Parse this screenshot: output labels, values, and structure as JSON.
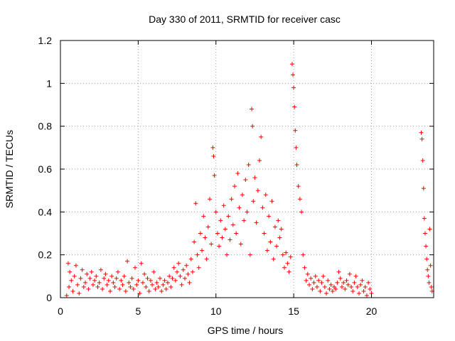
{
  "chart_data": {
    "type": "scatter",
    "title": "Day 330 of 2011, SRMTID for receiver casc",
    "xlabel": "GPS time / hours",
    "ylabel": "SRMTID / TECUs",
    "xlim": [
      0,
      24
    ],
    "ylim": [
      0,
      1.2
    ],
    "xticks": [
      0,
      5,
      10,
      15,
      20
    ],
    "xtick_labels": [
      "0",
      "5",
      "10",
      "15",
      "20"
    ],
    "yticks": [
      0,
      0.2,
      0.4,
      0.6,
      0.8,
      1.0,
      1.2
    ],
    "ytick_labels": [
      "0",
      "0.2",
      "0.4",
      "0.6",
      "0.8",
      "1",
      "1.2"
    ],
    "grid": true,
    "marker": "+",
    "colors": {
      "series": "#ff0000",
      "grid": "#a0a0a0",
      "axis": "#000000"
    },
    "series": [
      {
        "name": "SRMTID",
        "points": [
          [
            0.4,
            0.01
          ],
          [
            0.5,
            0.16
          ],
          [
            0.55,
            0.05
          ],
          [
            0.6,
            0.12
          ],
          [
            0.7,
            0.08
          ],
          [
            0.8,
            0.03
          ],
          [
            0.9,
            0.1
          ],
          [
            1.0,
            0.15
          ],
          [
            1.1,
            0.06
          ],
          [
            1.2,
            0.02
          ],
          [
            1.3,
            0.09
          ],
          [
            1.4,
            0.13
          ],
          [
            1.5,
            0.05
          ],
          [
            1.6,
            0.07
          ],
          [
            1.7,
            0.11
          ],
          [
            1.8,
            0.04
          ],
          [
            1.9,
            0.09
          ],
          [
            2.0,
            0.12
          ],
          [
            2.1,
            0.06
          ],
          [
            2.2,
            0.08
          ],
          [
            2.3,
            0.1
          ],
          [
            2.4,
            0.05
          ],
          [
            2.5,
            0.07
          ],
          [
            2.6,
            0.13
          ],
          [
            2.7,
            0.04
          ],
          [
            2.8,
            0.09
          ],
          [
            2.9,
            0.11
          ],
          [
            3.0,
            0.06
          ],
          [
            3.1,
            0.08
          ],
          [
            3.2,
            0.03
          ],
          [
            3.3,
            0.1
          ],
          [
            3.4,
            0.07
          ],
          [
            3.5,
            0.05
          ],
          [
            3.6,
            0.09
          ],
          [
            3.7,
            0.12
          ],
          [
            3.8,
            0.04
          ],
          [
            3.9,
            0.08
          ],
          [
            4.0,
            0.06
          ],
          [
            4.1,
            0.1
          ],
          [
            4.2,
            0.03
          ],
          [
            4.3,
            0.17
          ],
          [
            4.4,
            0.07
          ],
          [
            4.5,
            0.05
          ],
          [
            4.6,
            0.09
          ],
          [
            4.7,
            0.04
          ],
          [
            4.8,
            0.14
          ],
          [
            4.9,
            0.06
          ],
          [
            5.0,
            0.08
          ],
          [
            5.1,
            0.02
          ],
          [
            5.2,
            0.16
          ],
          [
            5.3,
            0.07
          ],
          [
            5.4,
            0.11
          ],
          [
            5.5,
            0.05
          ],
          [
            5.6,
            0.09
          ],
          [
            5.7,
            0.03
          ],
          [
            5.8,
            0.08
          ],
          [
            5.9,
            0.06
          ],
          [
            6.0,
            0.12
          ],
          [
            6.1,
            0.04
          ],
          [
            6.2,
            0.07
          ],
          [
            6.3,
            0.05
          ],
          [
            6.4,
            0.09
          ],
          [
            6.5,
            0.03
          ],
          [
            6.6,
            0.06
          ],
          [
            6.7,
            0.08
          ],
          [
            6.8,
            0.04
          ],
          [
            6.9,
            0.07
          ],
          [
            7.0,
            0.1
          ],
          [
            7.1,
            0.05
          ],
          [
            7.2,
            0.09
          ],
          [
            7.3,
            0.14
          ],
          [
            7.4,
            0.08
          ],
          [
            7.5,
            0.12
          ],
          [
            7.6,
            0.16
          ],
          [
            7.7,
            0.1
          ],
          [
            7.8,
            0.06
          ],
          [
            7.9,
            0.13
          ],
          [
            8.0,
            0.09
          ],
          [
            8.1,
            0.15
          ],
          [
            8.2,
            0.11
          ],
          [
            8.3,
            0.07
          ],
          [
            8.4,
            0.18
          ],
          [
            8.5,
            0.12
          ],
          [
            8.6,
            0.26
          ],
          [
            8.7,
            0.44
          ],
          [
            8.8,
            0.2
          ],
          [
            8.9,
            0.14
          ],
          [
            9.0,
            0.3
          ],
          [
            9.1,
            0.22
          ],
          [
            9.2,
            0.38
          ],
          [
            9.3,
            0.28
          ],
          [
            9.4,
            0.18
          ],
          [
            9.5,
            0.33
          ],
          [
            9.6,
            0.46
          ],
          [
            9.7,
            0.25
          ],
          [
            9.8,
            0.7
          ],
          [
            9.85,
            0.66
          ],
          [
            9.9,
            0.57
          ],
          [
            10.0,
            0.4
          ],
          [
            10.1,
            0.3
          ],
          [
            10.2,
            0.24
          ],
          [
            10.3,
            0.36
          ],
          [
            10.4,
            0.28
          ],
          [
            10.5,
            0.43
          ],
          [
            10.6,
            0.32
          ],
          [
            10.7,
            0.2
          ],
          [
            10.8,
            0.38
          ],
          [
            10.9,
            0.27
          ],
          [
            11.0,
            0.46
          ],
          [
            11.1,
            0.34
          ],
          [
            11.2,
            0.52
          ],
          [
            11.3,
            0.3
          ],
          [
            11.4,
            0.58
          ],
          [
            11.5,
            0.42
          ],
          [
            11.6,
            0.25
          ],
          [
            11.7,
            0.48
          ],
          [
            11.8,
            0.36
          ],
          [
            11.9,
            0.55
          ],
          [
            12.0,
            0.4
          ],
          [
            12.1,
            0.62
          ],
          [
            12.2,
            0.2
          ],
          [
            12.3,
            0.88
          ],
          [
            12.35,
            0.8
          ],
          [
            12.4,
            0.45
          ],
          [
            12.5,
            0.56
          ],
          [
            12.6,
            0.35
          ],
          [
            12.7,
            0.5
          ],
          [
            12.8,
            0.64
          ],
          [
            12.9,
            0.75
          ],
          [
            13.0,
            0.42
          ],
          [
            13.1,
            0.3
          ],
          [
            13.2,
            0.48
          ],
          [
            13.3,
            0.22
          ],
          [
            13.4,
            0.38
          ],
          [
            13.5,
            0.26
          ],
          [
            13.6,
            0.45
          ],
          [
            13.7,
            0.18
          ],
          [
            13.8,
            0.33
          ],
          [
            13.9,
            0.24
          ],
          [
            14.0,
            0.36
          ],
          [
            14.1,
            0.28
          ],
          [
            14.2,
            0.32
          ],
          [
            14.3,
            0.2
          ],
          [
            14.4,
            0.14
          ],
          [
            14.5,
            0.21
          ],
          [
            14.6,
            0.16
          ],
          [
            14.7,
            0.12
          ],
          [
            14.8,
            0.19
          ],
          [
            14.9,
            1.09
          ],
          [
            14.95,
            1.04
          ],
          [
            15.0,
            0.98
          ],
          [
            15.05,
            0.89
          ],
          [
            15.1,
            0.78
          ],
          [
            15.15,
            0.7
          ],
          [
            15.2,
            0.62
          ],
          [
            15.3,
            0.52
          ],
          [
            15.4,
            0.46
          ],
          [
            15.5,
            0.4
          ],
          [
            15.6,
            0.2
          ],
          [
            15.7,
            0.14
          ],
          [
            15.8,
            0.08
          ],
          [
            15.9,
            0.11
          ],
          [
            16.0,
            0.06
          ],
          [
            16.1,
            0.09
          ],
          [
            16.2,
            0.04
          ],
          [
            16.3,
            0.07
          ],
          [
            16.4,
            0.1
          ],
          [
            16.5,
            0.05
          ],
          [
            16.6,
            0.08
          ],
          [
            16.7,
            0.03
          ],
          [
            16.8,
            0.07
          ],
          [
            16.9,
            0.1
          ],
          [
            17.0,
            0.05
          ],
          [
            17.1,
            0.02
          ],
          [
            17.2,
            0.08
          ],
          [
            17.3,
            0.04
          ],
          [
            17.4,
            0.06
          ],
          [
            17.5,
            0.03
          ],
          [
            17.6,
            0.05
          ],
          [
            17.7,
            0.04
          ],
          [
            17.8,
            0.07
          ],
          [
            17.9,
            0.12
          ],
          [
            18.0,
            0.09
          ],
          [
            18.1,
            0.05
          ],
          [
            18.2,
            0.07
          ],
          [
            18.3,
            0.04
          ],
          [
            18.4,
            0.08
          ],
          [
            18.5,
            0.06
          ],
          [
            18.6,
            0.11
          ],
          [
            18.7,
            0.05
          ],
          [
            18.8,
            0.03
          ],
          [
            18.9,
            0.07
          ],
          [
            19.0,
            0.1
          ],
          [
            19.1,
            0.05
          ],
          [
            19.2,
            0.02
          ],
          [
            19.3,
            0.06
          ],
          [
            19.4,
            0.08
          ],
          [
            19.5,
            0.03
          ],
          [
            19.6,
            0.05
          ],
          [
            19.7,
            0.01
          ],
          [
            19.8,
            0.07
          ],
          [
            19.9,
            0.04
          ],
          [
            20.0,
            0.02
          ],
          [
            23.2,
            0.77
          ],
          [
            23.25,
            0.74
          ],
          [
            23.3,
            0.64
          ],
          [
            23.35,
            0.51
          ],
          [
            23.4,
            0.37
          ],
          [
            23.45,
            0.3
          ],
          [
            23.5,
            0.24
          ],
          [
            23.55,
            0.18
          ],
          [
            23.6,
            0.13
          ],
          [
            23.65,
            0.1
          ],
          [
            23.7,
            0.07
          ],
          [
            23.75,
            0.32
          ],
          [
            23.8,
            0.15
          ],
          [
            23.85,
            0.05
          ],
          [
            23.9,
            0.03
          ]
        ]
      }
    ]
  }
}
